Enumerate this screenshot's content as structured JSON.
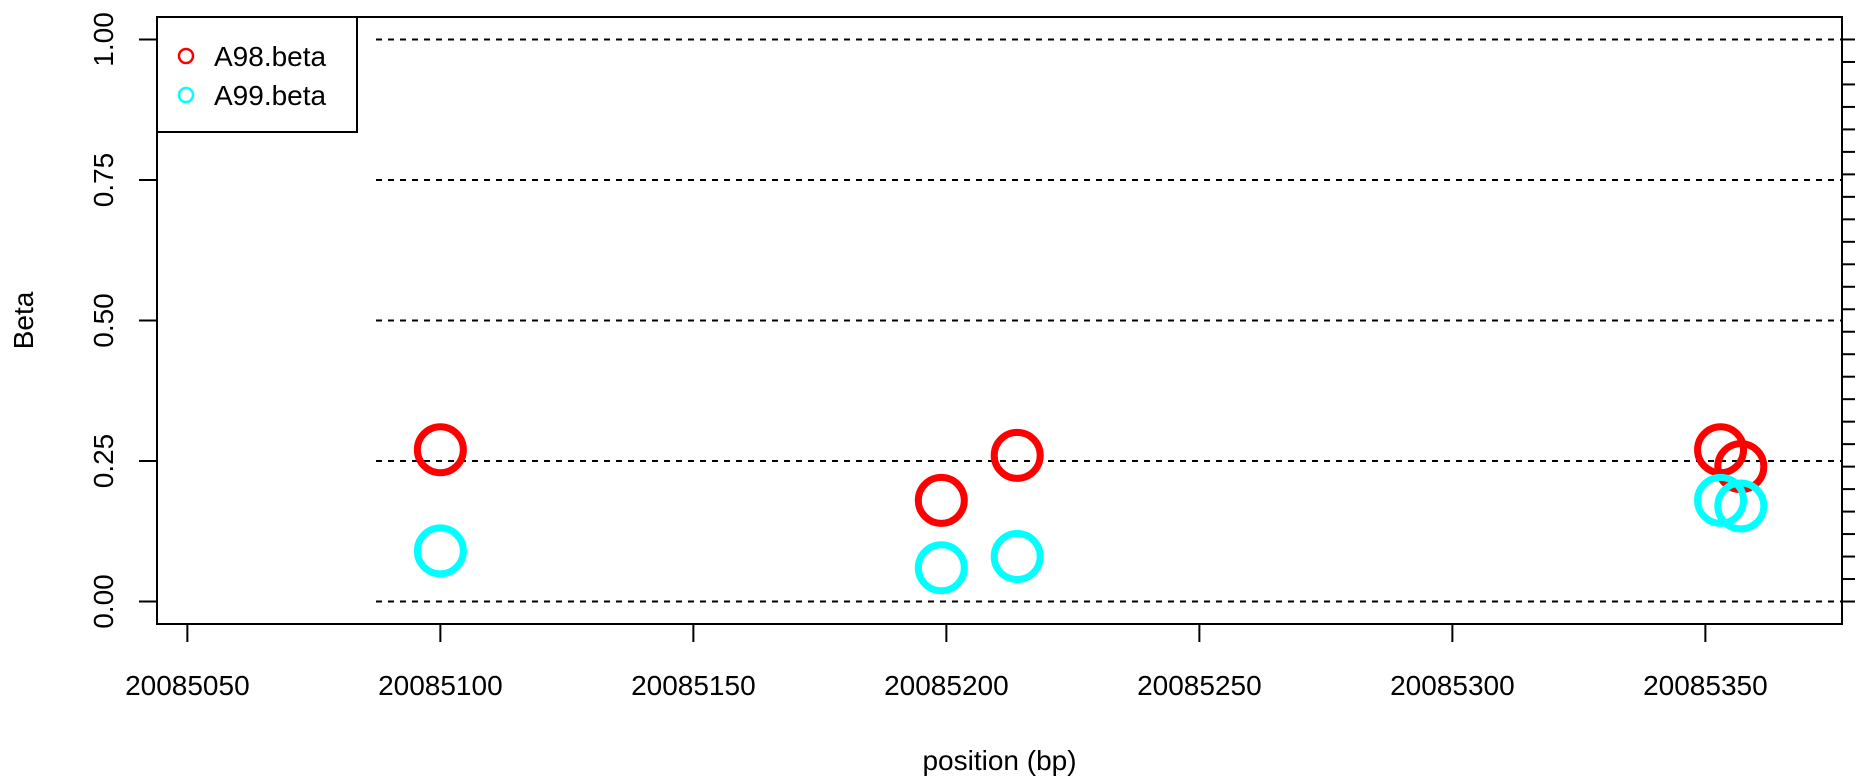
{
  "chart_data": {
    "type": "scatter",
    "xlabel": "position (bp)",
    "ylabel": "Beta",
    "xlim": [
      20085044,
      20085377
    ],
    "ylim": [
      -0.04,
      1.04
    ],
    "x_ticks": [
      20085050,
      20085100,
      20085150,
      20085200,
      20085250,
      20085300,
      20085350
    ],
    "x_tick_labels": [
      "20085050",
      "20085100",
      "20085150",
      "20085200",
      "20085250",
      "20085300",
      "20085350"
    ],
    "y_ticks": [
      0,
      0.25,
      0.5,
      0.75,
      1
    ],
    "y_tick_labels": [
      "0.00",
      "0.25",
      "0.50",
      "0.75",
      "1.00"
    ],
    "reference_lines": [
      0,
      0.25,
      0.5,
      0.75,
      1
    ],
    "legend_position": "top-left",
    "grid": false,
    "series": [
      {
        "name": "A98.beta",
        "color": "#ff0000",
        "marker": "open-circle",
        "points": [
          {
            "x": 20085100,
            "y": 0.27
          },
          {
            "x": 20085199,
            "y": 0.18
          },
          {
            "x": 20085214,
            "y": 0.26
          },
          {
            "x": 20085353,
            "y": 0.27
          },
          {
            "x": 20085357,
            "y": 0.24
          }
        ]
      },
      {
        "name": "A99.beta",
        "color": "#00ffff",
        "marker": "open-circle",
        "points": [
          {
            "x": 20085100,
            "y": 0.09
          },
          {
            "x": 20085199,
            "y": 0.06
          },
          {
            "x": 20085214,
            "y": 0.08
          },
          {
            "x": 20085353,
            "y": 0.18
          },
          {
            "x": 20085357,
            "y": 0.17
          }
        ]
      }
    ]
  }
}
